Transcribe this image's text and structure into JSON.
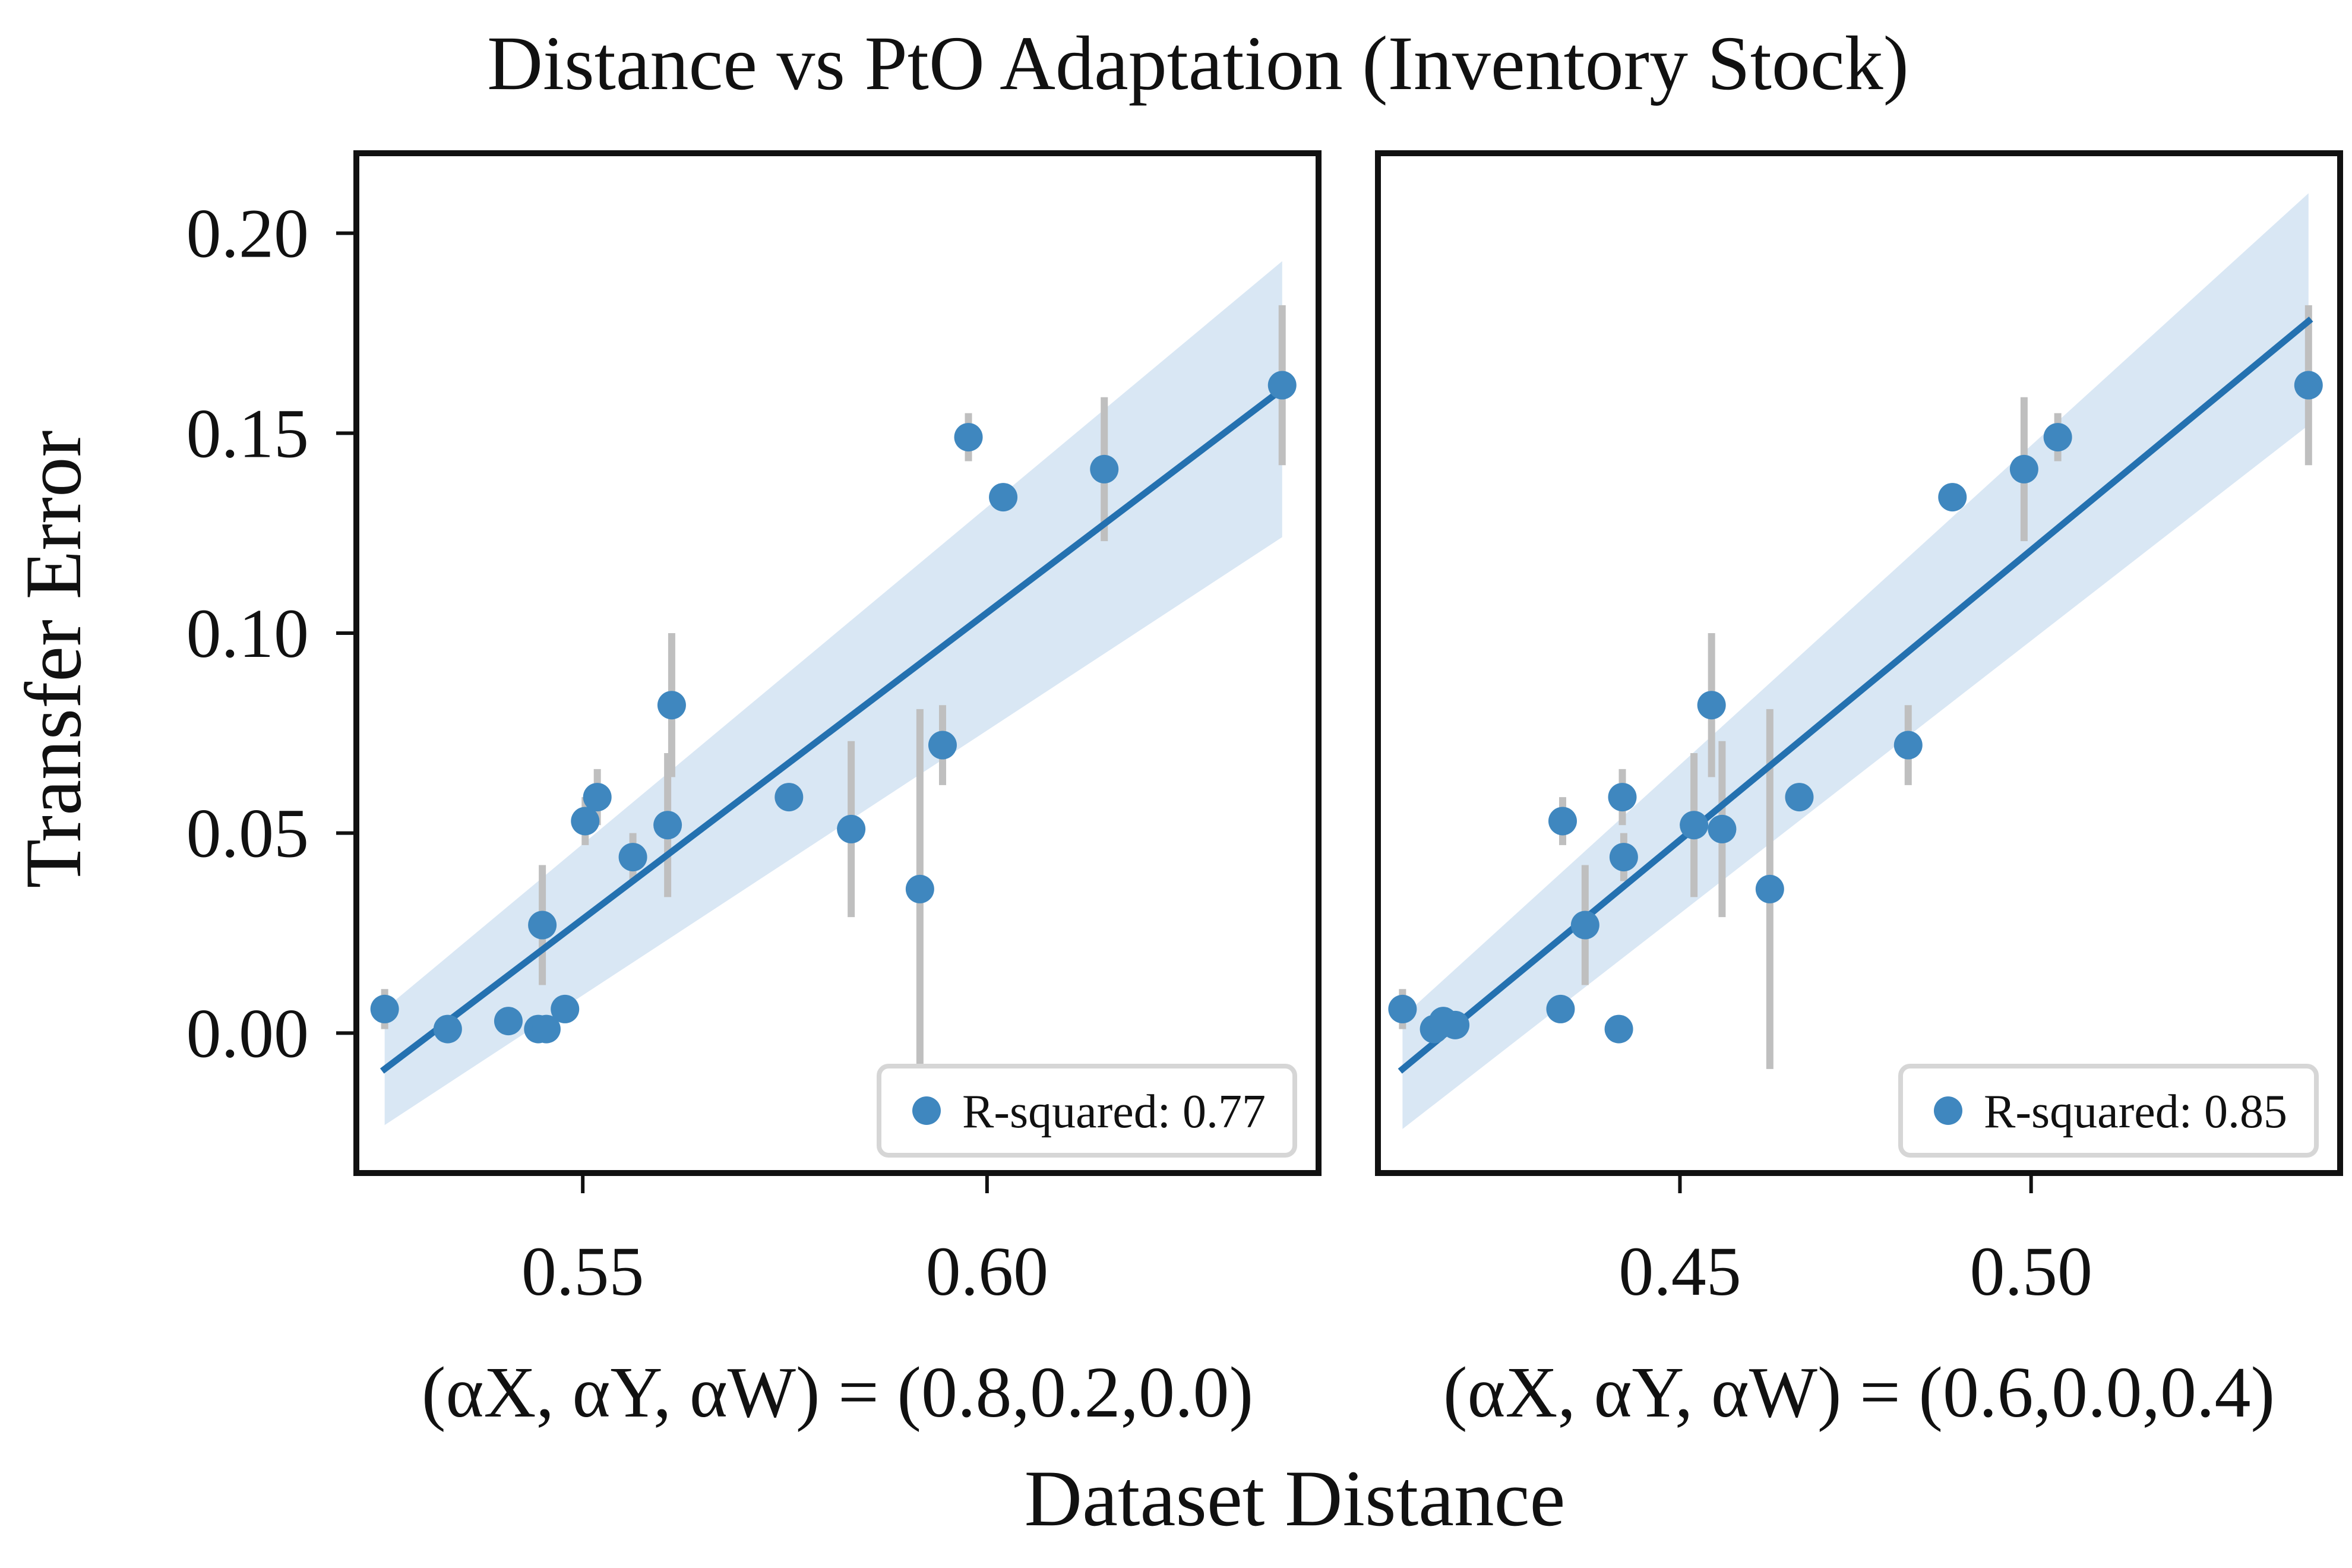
{
  "figure": {
    "title": "Distance vs PtO Adaptation (Inventory Stock)",
    "ylabel": "Transfer Error",
    "xlabel": "Dataset Distance",
    "point_color": "#3f87bf",
    "line_color": "#2471b0",
    "band_color": "#d9e7f4",
    "errorbar_color": "#bfbfbf"
  },
  "chart_data": [
    {
      "type": "scatter",
      "subtitle": "(αX, αY, αW) = (0.8,0.2,0.0)",
      "xlim": [
        0.522,
        0.641
      ],
      "ylim": [
        -0.035,
        0.22
      ],
      "xticks": [
        0.55,
        0.6
      ],
      "xtick_labels": [
        "0.55",
        "0.60"
      ],
      "yticks": [
        0.0,
        0.05,
        0.1,
        0.15,
        0.2
      ],
      "ytick_labels": [
        "0.00",
        "0.05",
        "0.10",
        "0.15",
        "0.20"
      ],
      "legend": {
        "label": "R-squared: 0.77",
        "position": "lower right"
      },
      "points": [
        {
          "x": 0.5255,
          "y": 0.006,
          "err": 0.005
        },
        {
          "x": 0.5333,
          "y": 0.001,
          "err": 0.0
        },
        {
          "x": 0.5408,
          "y": 0.003,
          "err": 0.0
        },
        {
          "x": 0.5445,
          "y": 0.001,
          "err": 0.0
        },
        {
          "x": 0.5455,
          "y": 0.001,
          "err": 0.0
        },
        {
          "x": 0.5478,
          "y": 0.006,
          "err": 0.0
        },
        {
          "x": 0.545,
          "y": 0.027,
          "err": 0.015
        },
        {
          "x": 0.5503,
          "y": 0.053,
          "err": 0.006
        },
        {
          "x": 0.5518,
          "y": 0.059,
          "err": 0.007
        },
        {
          "x": 0.5562,
          "y": 0.044,
          "err": 0.006
        },
        {
          "x": 0.5605,
          "y": 0.052,
          "err": 0.018
        },
        {
          "x": 0.561,
          "y": 0.082,
          "err": 0.018
        },
        {
          "x": 0.5755,
          "y": 0.059,
          "err": 0.0
        },
        {
          "x": 0.5832,
          "y": 0.051,
          "err": 0.022
        },
        {
          "x": 0.5917,
          "y": 0.036,
          "err": 0.045
        },
        {
          "x": 0.5945,
          "y": 0.072,
          "err": 0.01
        },
        {
          "x": 0.5977,
          "y": 0.149,
          "err": 0.006
        },
        {
          "x": 0.602,
          "y": 0.134,
          "err": 0.0
        },
        {
          "x": 0.6145,
          "y": 0.141,
          "err": 0.018
        },
        {
          "x": 0.6365,
          "y": 0.162,
          "err": 0.02
        }
      ],
      "fit": {
        "x": [
          0.5255,
          0.6365
        ],
        "y": [
          -0.009,
          0.161
        ]
      },
      "band": {
        "x": [
          0.5255,
          0.6365
        ],
        "upper": [
          0.006,
          0.193
        ],
        "lower": [
          -0.023,
          0.124
        ]
      }
    },
    {
      "type": "scatter",
      "subtitle": "(αX, αY, αW) = (0.6,0.0,0.4)",
      "xlim": [
        0.407,
        0.544
      ],
      "ylim": [
        -0.035,
        0.22
      ],
      "xticks": [
        0.45,
        0.5
      ],
      "xtick_labels": [
        "0.45",
        "0.50"
      ],
      "yticks": [
        0.0,
        0.05,
        0.1,
        0.15,
        0.2
      ],
      "ytick_labels": [
        "0.00",
        "0.05",
        "0.10",
        "0.15",
        "0.20"
      ],
      "legend": {
        "label": "R-squared: 0.85",
        "position": "lower right"
      },
      "points": [
        {
          "x": 0.4105,
          "y": 0.006,
          "err": 0.005
        },
        {
          "x": 0.415,
          "y": 0.001,
          "err": 0.0
        },
        {
          "x": 0.4163,
          "y": 0.003,
          "err": 0.0
        },
        {
          "x": 0.418,
          "y": 0.002,
          "err": 0.0
        },
        {
          "x": 0.433,
          "y": 0.006,
          "err": 0.0
        },
        {
          "x": 0.4333,
          "y": 0.053,
          "err": 0.006
        },
        {
          "x": 0.4365,
          "y": 0.027,
          "err": 0.015
        },
        {
          "x": 0.4413,
          "y": 0.001,
          "err": 0.0
        },
        {
          "x": 0.4418,
          "y": 0.059,
          "err": 0.007
        },
        {
          "x": 0.442,
          "y": 0.044,
          "err": 0.006
        },
        {
          "x": 0.452,
          "y": 0.052,
          "err": 0.018
        },
        {
          "x": 0.4545,
          "y": 0.082,
          "err": 0.018
        },
        {
          "x": 0.456,
          "y": 0.051,
          "err": 0.022
        },
        {
          "x": 0.4628,
          "y": 0.036,
          "err": 0.045
        },
        {
          "x": 0.467,
          "y": 0.059,
          "err": 0.0
        },
        {
          "x": 0.4825,
          "y": 0.072,
          "err": 0.01
        },
        {
          "x": 0.4888,
          "y": 0.134,
          "err": 0.0
        },
        {
          "x": 0.499,
          "y": 0.141,
          "err": 0.018
        },
        {
          "x": 0.5038,
          "y": 0.149,
          "err": 0.006
        },
        {
          "x": 0.5395,
          "y": 0.162,
          "err": 0.02
        }
      ],
      "fit": {
        "x": [
          0.4105,
          0.5395
        ],
        "y": [
          -0.009,
          0.178
        ]
      },
      "band": {
        "x": [
          0.4105,
          0.5395
        ],
        "upper": [
          0.004,
          0.21
        ],
        "lower": [
          -0.024,
          0.152
        ]
      }
    }
  ]
}
